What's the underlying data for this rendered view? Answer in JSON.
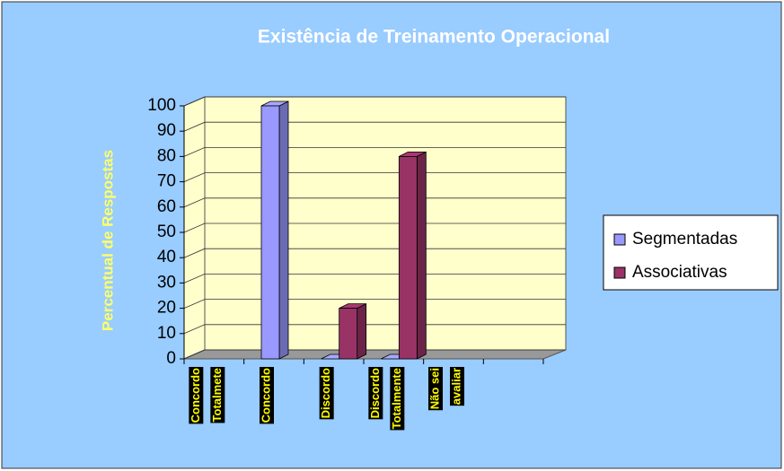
{
  "chart_data": {
    "type": "bar3d",
    "title": "Existência de Treinamento Operacional",
    "y_label": "Percentual de Respostas",
    "categories": [
      [
        "Concordo",
        "Totalmete"
      ],
      [
        "Concordo"
      ],
      [
        "Discordo"
      ],
      [
        "Discordo",
        "Totalmente"
      ],
      [
        "Não sei",
        "avaliar"
      ],
      null
    ],
    "series": [
      {
        "name": "Segmentadas",
        "color": "#9999ff",
        "values": [
          null,
          100,
          0,
          0,
          null,
          null
        ]
      },
      {
        "name": "Associativas",
        "color": "#993366",
        "values": [
          null,
          null,
          20,
          80,
          null,
          null
        ]
      }
    ],
    "ylim": [
      0,
      100
    ],
    "yticks": [
      0,
      10,
      20,
      30,
      40,
      50,
      60,
      70,
      80,
      90,
      100
    ],
    "grid": true,
    "legend": "right"
  }
}
